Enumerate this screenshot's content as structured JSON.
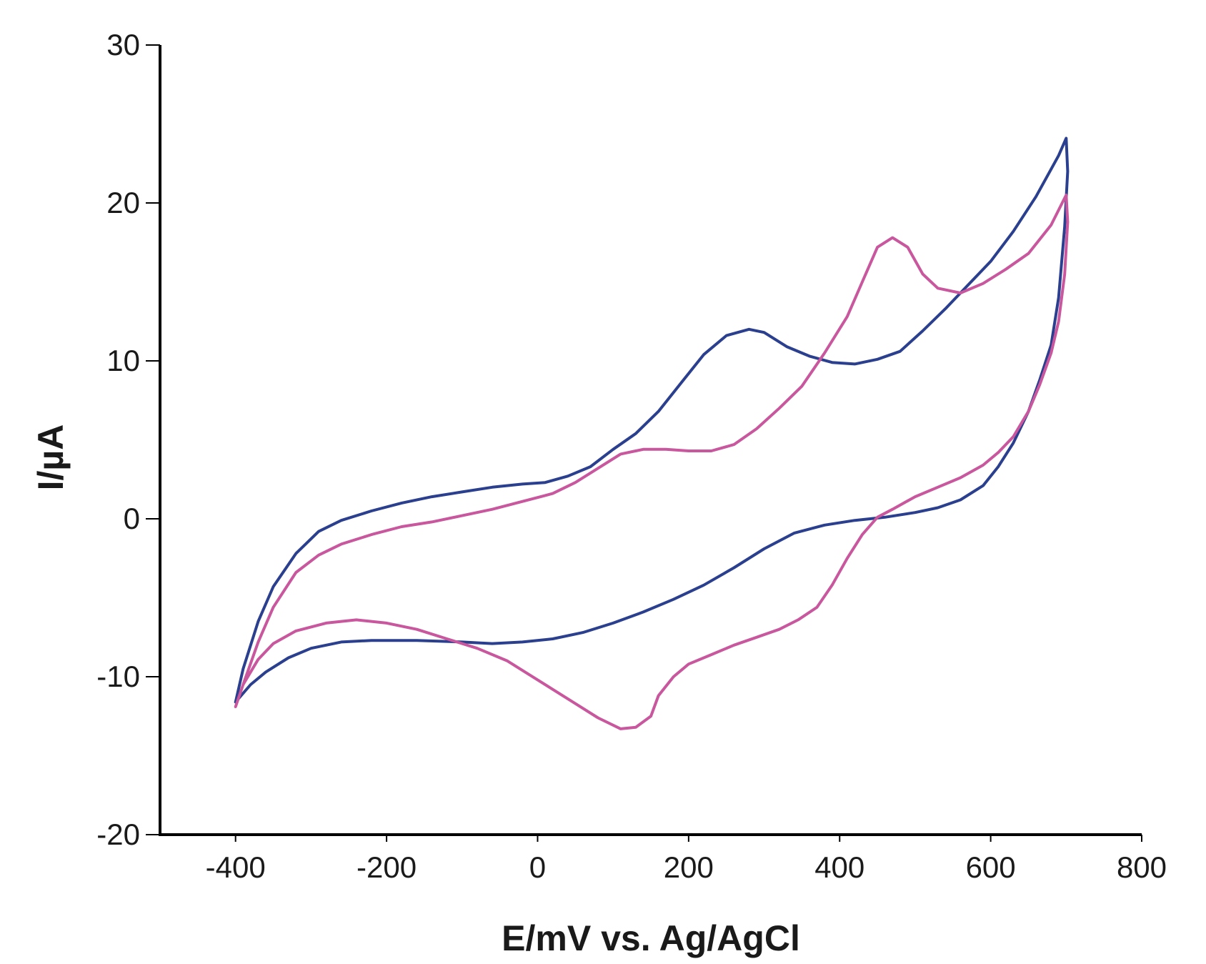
{
  "chart_data": {
    "type": "line",
    "title": "",
    "xlabel": "E/mV vs. Ag/AgCl",
    "ylabel": {
      "prefix": "I/",
      "unit": "µA"
    },
    "xlim": [
      -500,
      800
    ],
    "ylim": [
      -20,
      30
    ],
    "xticks": [
      -400,
      -200,
      0,
      200,
      400,
      600,
      800
    ],
    "yticks": [
      -20,
      -10,
      0,
      10,
      20,
      30
    ],
    "xtick_labels": [
      "-400",
      "-200",
      "0",
      "200",
      "400",
      "600",
      "800"
    ],
    "ytick_labels": [
      "-20",
      "-10",
      "0",
      "10",
      "20",
      "30"
    ],
    "grid": false,
    "legend": "none",
    "series": [
      {
        "name": "blue",
        "color": "#2b3f8f",
        "points": [
          [
            -400,
            -11.6
          ],
          [
            -390,
            -9.5
          ],
          [
            -370,
            -6.5
          ],
          [
            -350,
            -4.3
          ],
          [
            -320,
            -2.2
          ],
          [
            -290,
            -0.8
          ],
          [
            -260,
            -0.1
          ],
          [
            -220,
            0.5
          ],
          [
            -180,
            1.0
          ],
          [
            -140,
            1.4
          ],
          [
            -100,
            1.7
          ],
          [
            -60,
            2.0
          ],
          [
            -20,
            2.2
          ],
          [
            10,
            2.3
          ],
          [
            40,
            2.7
          ],
          [
            70,
            3.3
          ],
          [
            100,
            4.4
          ],
          [
            130,
            5.4
          ],
          [
            160,
            6.8
          ],
          [
            190,
            8.6
          ],
          [
            220,
            10.4
          ],
          [
            250,
            11.6
          ],
          [
            280,
            12.0
          ],
          [
            300,
            11.8
          ],
          [
            330,
            10.9
          ],
          [
            360,
            10.3
          ],
          [
            390,
            9.9
          ],
          [
            420,
            9.8
          ],
          [
            450,
            10.1
          ],
          [
            480,
            10.6
          ],
          [
            510,
            11.9
          ],
          [
            540,
            13.3
          ],
          [
            570,
            14.8
          ],
          [
            600,
            16.3
          ],
          [
            630,
            18.2
          ],
          [
            660,
            20.4
          ],
          [
            690,
            23.0
          ],
          [
            700,
            24.1
          ],
          [
            702,
            22.0
          ],
          [
            698,
            18.5
          ],
          [
            690,
            14.0
          ],
          [
            680,
            11.0
          ],
          [
            665,
            8.8
          ],
          [
            650,
            6.8
          ],
          [
            630,
            4.8
          ],
          [
            610,
            3.3
          ],
          [
            590,
            2.1
          ],
          [
            560,
            1.2
          ],
          [
            530,
            0.7
          ],
          [
            500,
            0.4
          ],
          [
            460,
            0.1
          ],
          [
            420,
            -0.1
          ],
          [
            380,
            -0.4
          ],
          [
            340,
            -0.9
          ],
          [
            300,
            -1.9
          ],
          [
            260,
            -3.1
          ],
          [
            220,
            -4.2
          ],
          [
            180,
            -5.1
          ],
          [
            140,
            -5.9
          ],
          [
            100,
            -6.6
          ],
          [
            60,
            -7.2
          ],
          [
            20,
            -7.6
          ],
          [
            -20,
            -7.8
          ],
          [
            -60,
            -7.9
          ],
          [
            -100,
            -7.8
          ],
          [
            -160,
            -7.7
          ],
          [
            -220,
            -7.7
          ],
          [
            -260,
            -7.8
          ],
          [
            -300,
            -8.2
          ],
          [
            -330,
            -8.8
          ],
          [
            -360,
            -9.7
          ],
          [
            -380,
            -10.5
          ],
          [
            -400,
            -11.6
          ]
        ]
      },
      {
        "name": "pink",
        "color": "#c9579e",
        "points": [
          [
            -400,
            -11.9
          ],
          [
            -390,
            -10.5
          ],
          [
            -370,
            -7.8
          ],
          [
            -350,
            -5.6
          ],
          [
            -320,
            -3.4
          ],
          [
            -290,
            -2.3
          ],
          [
            -260,
            -1.6
          ],
          [
            -220,
            -1.0
          ],
          [
            -180,
            -0.5
          ],
          [
            -140,
            -0.2
          ],
          [
            -100,
            0.2
          ],
          [
            -60,
            0.6
          ],
          [
            -20,
            1.1
          ],
          [
            20,
            1.6
          ],
          [
            50,
            2.3
          ],
          [
            80,
            3.2
          ],
          [
            110,
            4.1
          ],
          [
            140,
            4.4
          ],
          [
            170,
            4.4
          ],
          [
            200,
            4.3
          ],
          [
            230,
            4.3
          ],
          [
            260,
            4.7
          ],
          [
            290,
            5.7
          ],
          [
            320,
            7.0
          ],
          [
            350,
            8.4
          ],
          [
            380,
            10.5
          ],
          [
            410,
            12.8
          ],
          [
            430,
            15.0
          ],
          [
            450,
            17.2
          ],
          [
            470,
            17.8
          ],
          [
            490,
            17.2
          ],
          [
            510,
            15.5
          ],
          [
            530,
            14.6
          ],
          [
            560,
            14.3
          ],
          [
            590,
            14.9
          ],
          [
            620,
            15.8
          ],
          [
            650,
            16.8
          ],
          [
            680,
            18.6
          ],
          [
            700,
            20.5
          ],
          [
            702,
            18.8
          ],
          [
            698,
            15.5
          ],
          [
            690,
            12.5
          ],
          [
            680,
            10.5
          ],
          [
            665,
            8.5
          ],
          [
            650,
            6.8
          ],
          [
            630,
            5.2
          ],
          [
            610,
            4.2
          ],
          [
            590,
            3.4
          ],
          [
            560,
            2.6
          ],
          [
            530,
            2.0
          ],
          [
            500,
            1.4
          ],
          [
            470,
            0.6
          ],
          [
            450,
            0.1
          ],
          [
            430,
            -1.0
          ],
          [
            410,
            -2.5
          ],
          [
            390,
            -4.2
          ],
          [
            370,
            -5.6
          ],
          [
            345,
            -6.4
          ],
          [
            320,
            -7.0
          ],
          [
            290,
            -7.5
          ],
          [
            260,
            -8.0
          ],
          [
            230,
            -8.6
          ],
          [
            200,
            -9.2
          ],
          [
            180,
            -10.0
          ],
          [
            160,
            -11.2
          ],
          [
            150,
            -12.5
          ],
          [
            130,
            -13.2
          ],
          [
            110,
            -13.3
          ],
          [
            80,
            -12.6
          ],
          [
            50,
            -11.7
          ],
          [
            20,
            -10.8
          ],
          [
            -10,
            -9.9
          ],
          [
            -40,
            -9.0
          ],
          [
            -80,
            -8.2
          ],
          [
            -120,
            -7.6
          ],
          [
            -160,
            -7.0
          ],
          [
            -200,
            -6.6
          ],
          [
            -240,
            -6.4
          ],
          [
            -280,
            -6.6
          ],
          [
            -320,
            -7.1
          ],
          [
            -350,
            -7.9
          ],
          [
            -370,
            -8.9
          ],
          [
            -390,
            -10.5
          ],
          [
            -400,
            -11.9
          ]
        ]
      }
    ]
  }
}
